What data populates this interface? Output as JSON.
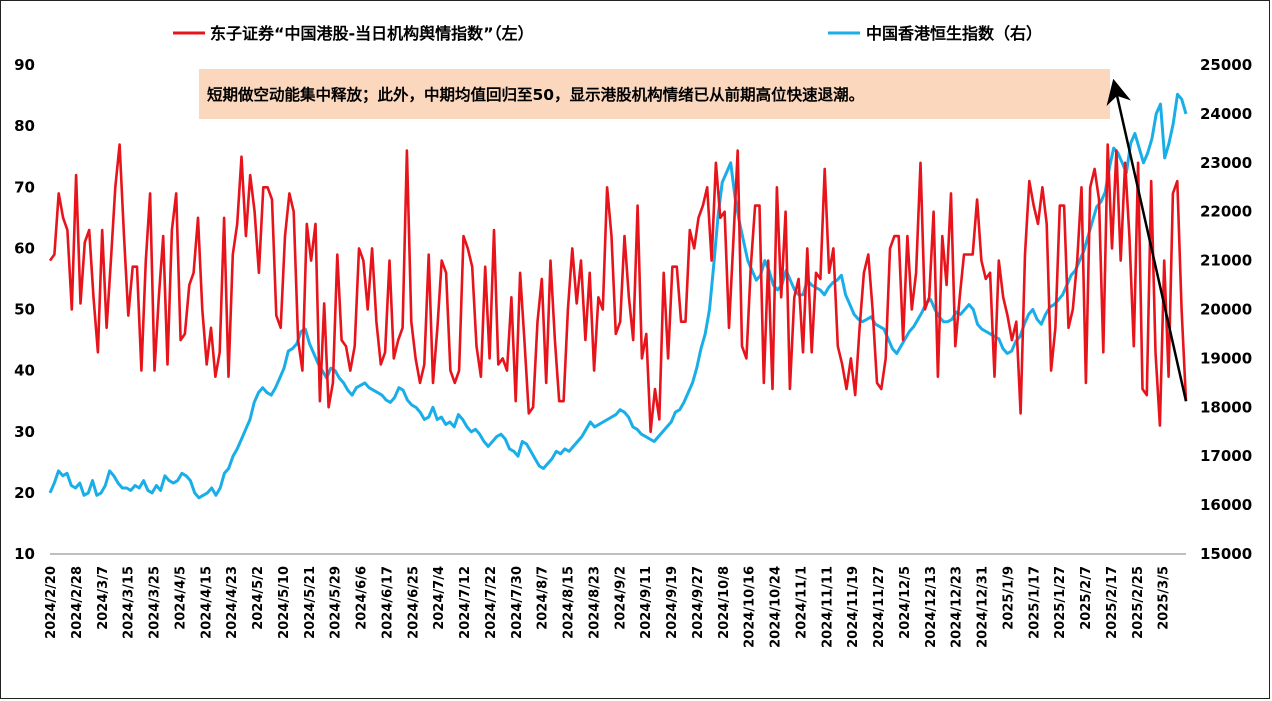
{
  "legend": {
    "series1_label": "东子证券“中国港股-当日机构舆情指数”（左）",
    "series2_label": "中国香港恒生指数（右）"
  },
  "annotation": {
    "text": "短期做空动能集中释放；此外，中期均值回归至50，显示港股机构情绪已从前期高位快速退潮。",
    "background": "#fad7bd"
  },
  "chart_data": {
    "type": "line",
    "title": "",
    "y_left": {
      "min": 10,
      "max": 90,
      "ticks": [
        10,
        20,
        30,
        40,
        50,
        60,
        70,
        80,
        90
      ]
    },
    "y_right": {
      "min": 15000,
      "max": 25000,
      "ticks": [
        15000,
        16000,
        17000,
        18000,
        19000,
        20000,
        21000,
        22000,
        23000,
        24000,
        25000
      ]
    },
    "x_labels": [
      "2024/2/20",
      "2024/2/28",
      "2024/3/7",
      "2024/3/15",
      "2024/3/25",
      "2024/4/5",
      "2024/4/15",
      "2024/4/23",
      "2024/5/2",
      "2024/5/10",
      "2024/5/21",
      "2024/5/29",
      "2024/6/6",
      "2024/6/17",
      "2024/6/25",
      "2024/7/4",
      "2024/7/12",
      "2024/7/22",
      "2024/7/30",
      "2024/8/7",
      "2024/8/15",
      "2024/8/23",
      "2024/9/2",
      "2024/9/11",
      "2024/9/19",
      "2024/9/27",
      "2024/10/8",
      "2024/10/16",
      "2024/10/24",
      "2024/11/1",
      "2024/11/11",
      "2024/11/19",
      "2024/11/27",
      "2024/12/5",
      "2024/12/13",
      "2024/12/23",
      "2024/12/31",
      "2025/1/9",
      "2025/1/17",
      "2025/1/27",
      "2025/2/7",
      "2025/2/17",
      "2025/2/25",
      "2025/3/5"
    ],
    "grid": false,
    "legend_position": "top",
    "series": [
      {
        "name": "东子证券“中国港股-当日机构舆情指数”（左）",
        "axis": "left",
        "color": "#e8141c",
        "values": [
          58,
          59,
          69,
          65,
          63,
          50,
          72,
          51,
          61,
          63,
          52,
          43,
          63,
          47,
          58,
          70,
          77,
          62,
          49,
          57,
          57,
          40,
          58,
          69,
          40,
          52,
          62,
          41,
          63,
          69,
          45,
          46,
          54,
          56,
          65,
          50,
          41,
          47,
          39,
          43,
          65,
          39,
          59,
          64,
          75,
          62,
          72,
          66,
          56,
          70,
          70,
          68,
          49,
          47,
          62,
          69,
          66,
          45,
          40,
          64,
          58,
          64,
          35,
          51,
          34,
          38,
          59,
          45,
          44,
          40,
          44,
          60,
          58,
          50,
          60,
          48,
          41,
          43,
          58,
          42,
          45,
          47,
          76,
          48,
          42,
          38,
          41,
          59,
          38,
          47,
          58,
          56,
          40,
          38,
          40,
          62,
          60,
          57,
          44,
          39,
          57,
          42,
          63,
          41,
          42,
          40,
          52,
          35,
          56,
          45,
          33,
          34,
          48,
          55,
          38,
          58,
          45,
          35,
          35,
          50,
          60,
          51,
          58,
          45,
          56,
          40,
          52,
          50,
          70,
          62,
          46,
          48,
          62,
          52,
          45,
          67,
          42,
          46,
          30,
          37,
          32,
          56,
          42,
          57,
          57,
          48,
          48,
          63,
          60,
          65,
          67,
          70,
          58,
          74,
          65,
          66,
          47,
          61,
          76,
          44,
          42,
          57,
          67,
          67,
          38,
          58,
          37,
          70,
          52,
          66,
          37,
          52,
          55,
          43,
          60,
          43,
          56,
          55,
          73,
          56,
          60,
          44,
          41,
          37,
          42,
          36,
          47,
          56,
          59,
          50,
          38,
          37,
          42,
          60,
          62,
          62,
          45,
          62,
          50,
          56,
          74,
          50,
          52,
          66,
          39,
          62,
          54,
          69,
          44,
          52,
          59,
          59,
          59,
          68,
          58,
          55,
          56,
          39,
          58,
          52,
          49,
          45,
          48,
          33,
          59,
          71,
          67,
          64,
          70,
          64,
          40,
          47,
          67,
          67,
          47,
          50,
          58,
          70,
          38,
          70,
          73,
          68,
          43,
          77,
          60,
          76,
          58,
          74,
          62,
          44,
          74,
          37,
          36,
          71,
          43,
          31,
          58,
          39,
          69,
          71,
          50,
          35
        ]
      },
      {
        "name": "中国香港恒生指数（右）",
        "axis": "right",
        "color": "#1aaee8",
        "values": [
          16250,
          16450,
          16700,
          16600,
          16650,
          16400,
          16350,
          16450,
          16200,
          16250,
          16500,
          16200,
          16250,
          16400,
          16700,
          16600,
          16450,
          16350,
          16350,
          16300,
          16400,
          16350,
          16500,
          16300,
          16250,
          16400,
          16300,
          16600,
          16500,
          16450,
          16500,
          16650,
          16600,
          16500,
          16250,
          16150,
          16200,
          16250,
          16350,
          16200,
          16350,
          16650,
          16750,
          17000,
          17150,
          17350,
          17550,
          17750,
          18100,
          18300,
          18400,
          18300,
          18250,
          18400,
          18600,
          18800,
          19150,
          19200,
          19300,
          19550,
          19600,
          19300,
          19100,
          18900,
          18750,
          18600,
          18800,
          18750,
          18600,
          18500,
          18350,
          18250,
          18400,
          18450,
          18500,
          18400,
          18350,
          18300,
          18250,
          18150,
          18100,
          18200,
          18400,
          18350,
          18150,
          18050,
          18000,
          17900,
          17750,
          17800,
          18000,
          17750,
          17800,
          17650,
          17700,
          17600,
          17850,
          17750,
          17600,
          17500,
          17550,
          17450,
          17300,
          17200,
          17300,
          17400,
          17450,
          17350,
          17150,
          17100,
          17000,
          17300,
          17250,
          17100,
          16950,
          16800,
          16750,
          16850,
          16950,
          17100,
          17050,
          17150,
          17100,
          17200,
          17300,
          17400,
          17550,
          17700,
          17600,
          17650,
          17700,
          17750,
          17800,
          17850,
          17950,
          17900,
          17800,
          17600,
          17550,
          17450,
          17400,
          17350,
          17300,
          17400,
          17500,
          17600,
          17700,
          17900,
          17950,
          18100,
          18300,
          18500,
          18800,
          19200,
          19500,
          20000,
          20900,
          21900,
          22600,
          22800,
          23000,
          22300,
          21800,
          21400,
          21000,
          20800,
          20600,
          20700,
          21000,
          20800,
          20500,
          20400,
          20500,
          20800,
          20600,
          20400,
          20300,
          20300,
          20600,
          20500,
          20450,
          20400,
          20300,
          20450,
          20550,
          20600,
          20700,
          20300,
          20100,
          19900,
          19800,
          19750,
          19800,
          19850,
          19700,
          19650,
          19600,
          19400,
          19200,
          19100,
          19250,
          19400,
          19550,
          19650,
          19800,
          19950,
          20150,
          20200,
          20000,
          19850,
          19750,
          19750,
          19800,
          19950,
          19900,
          20000,
          20100,
          20000,
          19700,
          19600,
          19550,
          19500,
          19450,
          19400,
          19200,
          19100,
          19150,
          19350,
          19450,
          19700,
          19900,
          20000,
          19800,
          19700,
          19900,
          20050,
          20100,
          20200,
          20300,
          20500,
          20700,
          20800,
          21000,
          21200,
          21500,
          21800,
          22100,
          22200,
          22400,
          22900,
          23300,
          23200,
          23000,
          22800,
          23400,
          23600,
          23300,
          23000,
          23200,
          23500,
          24000,
          24200,
          23100,
          23400,
          23800,
          24400,
          24300,
          24000
        ]
      }
    ],
    "arrow": {
      "from": "annotation-end",
      "to": "last-point"
    }
  }
}
